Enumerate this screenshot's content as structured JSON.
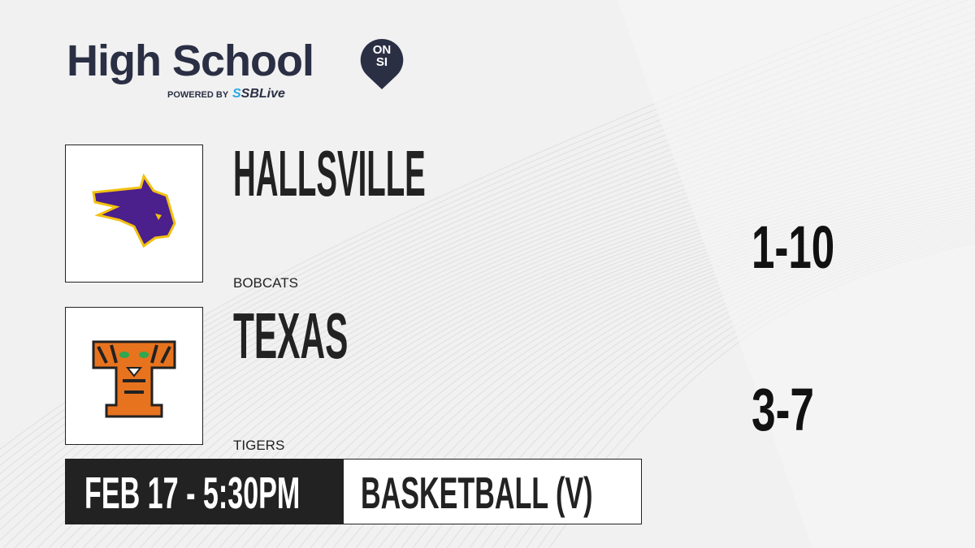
{
  "brand": {
    "title": "High School",
    "badge_top": "ON",
    "badge_bottom": "SI",
    "powered_by": "POWERED BY",
    "partner": "SBLive",
    "color": "#2b2f44",
    "partner_color": "#29a8e0"
  },
  "teams": [
    {
      "name": "HALLSVILLE",
      "mascot": "BOBCATS",
      "record": "1-10",
      "logo_icon": "bobcat-logo",
      "colors": [
        "#4b1f8c",
        "#f2c10f"
      ]
    },
    {
      "name": "TEXAS",
      "mascot": "TIGERS",
      "record": "3-7",
      "logo_icon": "tiger-t-logo",
      "colors": [
        "#e8731e",
        "#222222"
      ]
    }
  ],
  "game": {
    "datetime": "FEB 17 - 5:30PM",
    "sport": "BASKETBALL (V)"
  }
}
